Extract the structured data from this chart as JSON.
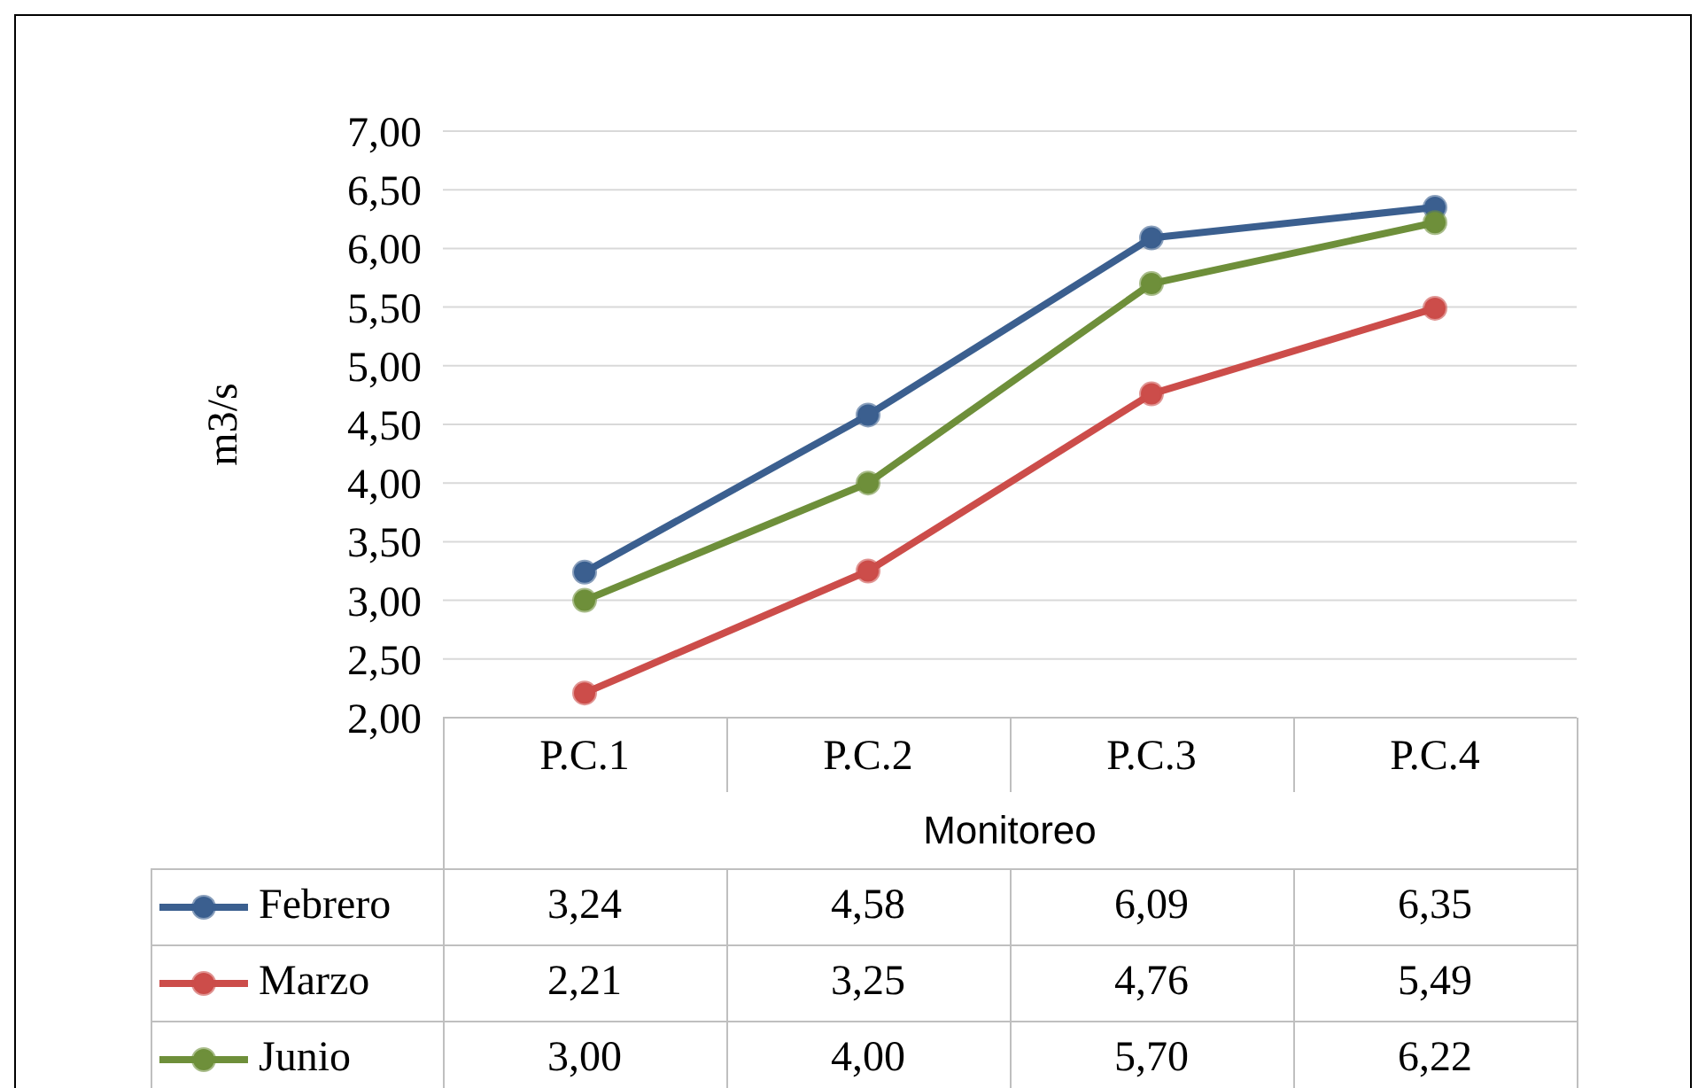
{
  "chart_data": {
    "type": "line",
    "xlabel": "Monitoreo",
    "ylabel": "m3/s",
    "categories": [
      "P.C.1",
      "P.C.2",
      "P.C.3",
      "P.C.4"
    ],
    "series": [
      {
        "name": "Febrero",
        "color": "#3b5f8f",
        "values": [
          3.24,
          4.58,
          6.09,
          6.35
        ],
        "value_labels": [
          "3,24",
          "4,58",
          "6,09",
          "6,35"
        ]
      },
      {
        "name": "Marzo",
        "color": "#cc4d4a",
        "values": [
          2.21,
          3.25,
          4.76,
          5.49
        ],
        "value_labels": [
          "2,21",
          "3,25",
          "4,76",
          "5,49"
        ]
      },
      {
        "name": "Junio",
        "color": "#6e8f3a",
        "values": [
          3.0,
          4.0,
          5.7,
          6.22
        ],
        "value_labels": [
          "3,00",
          "4,00",
          "5,70",
          "6,22"
        ]
      }
    ],
    "ylim": [
      2,
      7
    ],
    "yticks": [
      {
        "value": 2,
        "label": "2,00"
      },
      {
        "value": 2.5,
        "label": "2,50"
      },
      {
        "value": 3,
        "label": "3,00"
      },
      {
        "value": 3.5,
        "label": "3,50"
      },
      {
        "value": 4,
        "label": "4,00"
      },
      {
        "value": 4.5,
        "label": "4,50"
      },
      {
        "value": 5,
        "label": "5,00"
      },
      {
        "value": 5.5,
        "label": "5,50"
      },
      {
        "value": 6,
        "label": "6,00"
      },
      {
        "value": 6.5,
        "label": "6,50"
      },
      {
        "value": 7,
        "label": "7,00"
      }
    ],
    "grid": "y",
    "legend": "bottom",
    "marker": "circle",
    "line_style": "solid"
  }
}
